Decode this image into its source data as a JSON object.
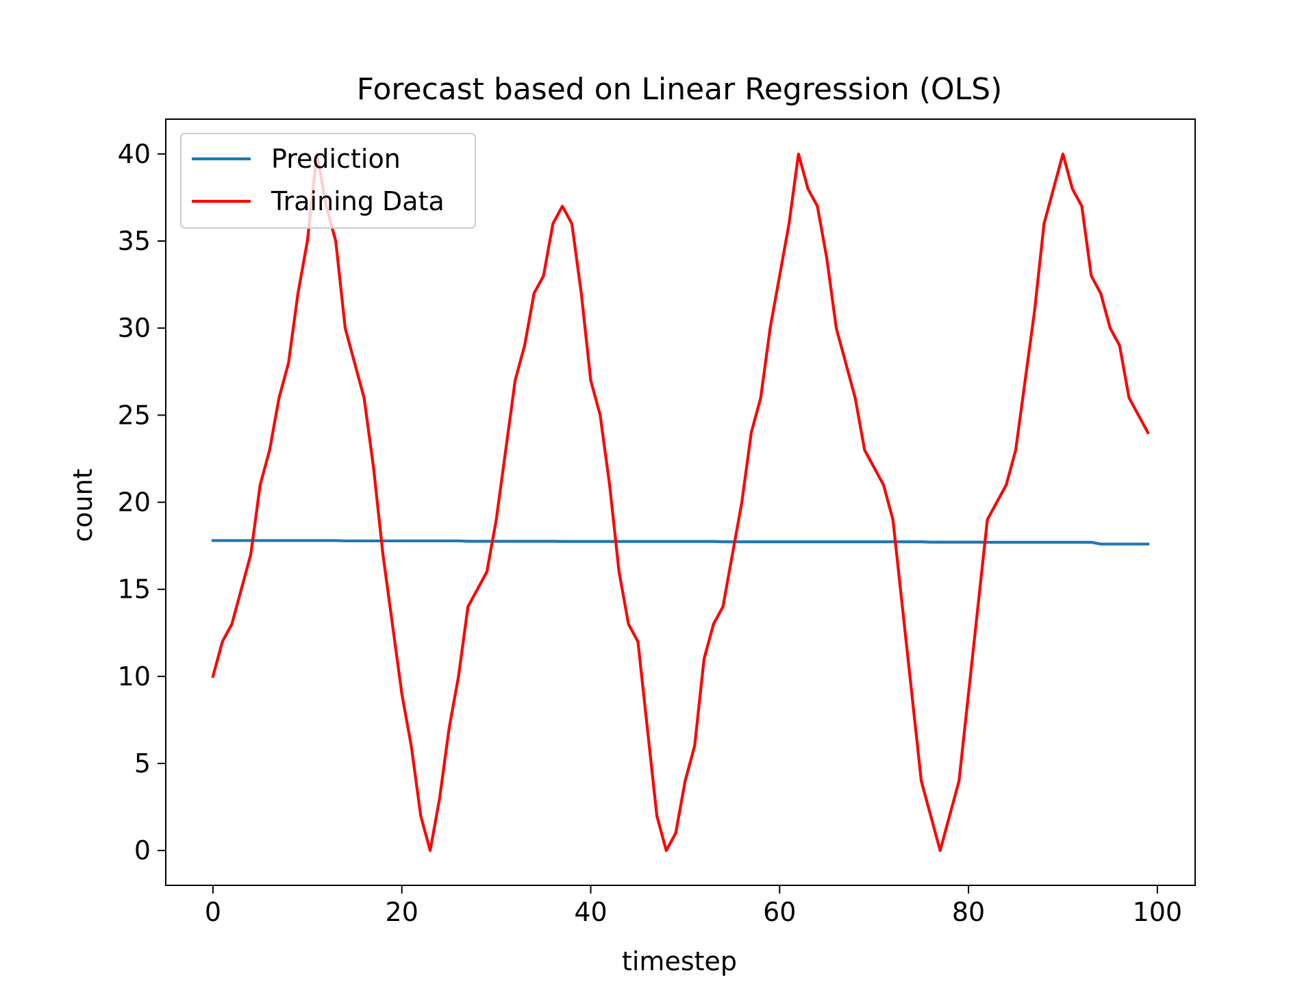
{
  "chart_data": {
    "type": "line",
    "title": "Forecast based on Linear Regression (OLS)",
    "xlabel": "timestep",
    "ylabel": "count",
    "xlim": [
      -5,
      104
    ],
    "ylim": [
      -2,
      42
    ],
    "x_ticks": [
      0,
      20,
      40,
      60,
      80,
      100
    ],
    "x_tick_labels": [
      "0",
      "20",
      "40",
      "60",
      "80",
      "100"
    ],
    "y_ticks": [
      0,
      5,
      10,
      15,
      20,
      25,
      30,
      35,
      40
    ],
    "y_tick_labels": [
      "0",
      "5",
      "10",
      "15",
      "20",
      "25",
      "30",
      "35",
      "40"
    ],
    "grid": false,
    "legend_position": "top-left",
    "series": [
      {
        "name": "Prediction",
        "color": "#1f77b4",
        "x": [
          0,
          13,
          14,
          26,
          27,
          36,
          37,
          53,
          54,
          75,
          76,
          81,
          82,
          93,
          94,
          99
        ],
        "values": [
          17.8,
          17.8,
          17.78,
          17.78,
          17.76,
          17.76,
          17.75,
          17.75,
          17.73,
          17.73,
          17.71,
          17.71,
          17.7,
          17.7,
          17.6,
          17.6
        ]
      },
      {
        "name": "Training Data",
        "color": "#ff0000",
        "x": [
          0,
          1,
          2,
          3,
          4,
          5,
          6,
          7,
          8,
          9,
          10,
          11,
          12,
          13,
          14,
          15,
          16,
          17,
          18,
          19,
          20,
          21,
          22,
          23,
          24,
          25,
          26,
          27,
          28,
          29,
          30,
          31,
          32,
          33,
          34,
          35,
          36,
          37,
          38,
          39,
          40,
          41,
          42,
          43,
          44,
          45,
          46,
          47,
          48,
          49,
          50,
          51,
          52,
          53,
          54,
          55,
          56,
          57,
          58,
          59,
          60,
          61,
          62,
          63,
          64,
          65,
          66,
          67,
          68,
          69,
          70,
          71,
          72,
          73,
          74,
          75,
          76,
          77,
          78,
          79,
          80,
          81,
          82,
          83,
          84,
          85,
          86,
          87,
          88,
          89,
          90,
          91,
          92,
          93,
          94,
          95,
          96,
          97,
          98,
          99
        ],
        "values": [
          10,
          12,
          13,
          15,
          17,
          21,
          23,
          26,
          28,
          32,
          35,
          40,
          37,
          35,
          30,
          28,
          26,
          22,
          17,
          13,
          9,
          6,
          2,
          0,
          3,
          7,
          10,
          14,
          15,
          16,
          19,
          23,
          27,
          29,
          32,
          33,
          36,
          37,
          36,
          32,
          27,
          25,
          21,
          16,
          13,
          12,
          7,
          2,
          0,
          1,
          4,
          6,
          11,
          13,
          14,
          17,
          20,
          24,
          26,
          30,
          33,
          36,
          40,
          38,
          37,
          34,
          30,
          28,
          26,
          23,
          22,
          21,
          19,
          14,
          9,
          4,
          2,
          0,
          2,
          4,
          9,
          14,
          19,
          20,
          21,
          23,
          27,
          31,
          36,
          38,
          40,
          38,
          37,
          33,
          32,
          30,
          29,
          26,
          25,
          24
        ]
      }
    ]
  }
}
